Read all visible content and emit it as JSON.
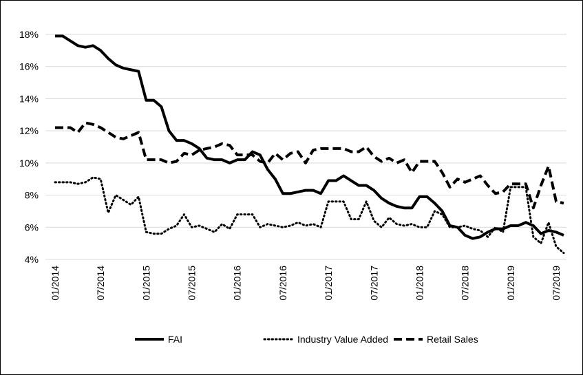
{
  "chart_data": {
    "type": "line",
    "categories": [
      "01/2014",
      null,
      null,
      null,
      null,
      null,
      "07/2014",
      null,
      null,
      null,
      null,
      null,
      "01/2015",
      null,
      null,
      null,
      null,
      null,
      "07/2015",
      null,
      null,
      null,
      null,
      null,
      "01/2016",
      null,
      null,
      null,
      null,
      null,
      "07/2016",
      null,
      null,
      null,
      null,
      null,
      "01/2017",
      null,
      null,
      null,
      null,
      null,
      "07/2017",
      null,
      null,
      null,
      null,
      null,
      "01/2018",
      null,
      null,
      null,
      null,
      null,
      "07/2018",
      null,
      null,
      null,
      null,
      null,
      "01/2019",
      null,
      null,
      null,
      null,
      null,
      "07/2019",
      null
    ],
    "series": [
      {
        "name": "FAI",
        "color": "#000000",
        "style": "solid",
        "values": [
          17.9,
          17.9,
          17.6,
          17.3,
          17.2,
          17.3,
          17.0,
          16.5,
          16.1,
          15.9,
          15.8,
          15.7,
          13.9,
          13.9,
          13.5,
          12.0,
          11.4,
          11.4,
          11.2,
          10.9,
          10.3,
          10.2,
          10.2,
          10.0,
          10.2,
          10.2,
          10.7,
          10.5,
          9.6,
          9.0,
          8.1,
          8.1,
          8.2,
          8.3,
          8.3,
          8.1,
          8.9,
          8.9,
          9.2,
          8.9,
          8.6,
          8.6,
          8.3,
          7.8,
          7.5,
          7.3,
          7.2,
          7.2,
          7.9,
          7.9,
          7.5,
          7.0,
          6.1,
          6.0,
          5.5,
          5.3,
          5.4,
          5.7,
          5.9,
          5.9,
          6.1,
          6.1,
          6.3,
          6.1,
          5.6,
          5.8,
          5.7,
          5.5
        ]
      },
      {
        "name": "Industry Value Added",
        "color": "#000000",
        "style": "dotted",
        "values": [
          8.8,
          8.8,
          8.8,
          8.7,
          8.8,
          9.1,
          9.0,
          6.9,
          8.0,
          7.7,
          7.4,
          7.9,
          5.7,
          5.6,
          5.6,
          5.9,
          6.1,
          6.8,
          6.0,
          6.1,
          5.9,
          5.7,
          6.2,
          5.9,
          6.8,
          6.8,
          6.8,
          6.0,
          6.2,
          6.1,
          6.0,
          6.1,
          6.3,
          6.1,
          6.2,
          6.0,
          7.6,
          7.6,
          7.6,
          6.5,
          6.5,
          7.6,
          6.4,
          6.0,
          6.6,
          6.2,
          6.1,
          6.2,
          6.0,
          6.0,
          7.0,
          6.8,
          6.0,
          6.0,
          6.1,
          5.9,
          5.8,
          5.4,
          6.0,
          5.7,
          8.5,
          8.5,
          8.5,
          5.4,
          5.0,
          6.3,
          4.8,
          4.4
        ]
      },
      {
        "name": "Retail Sales",
        "color": "#000000",
        "style": "dashed",
        "values": [
          12.2,
          12.2,
          12.2,
          11.9,
          12.5,
          12.4,
          12.2,
          11.9,
          11.6,
          11.5,
          11.7,
          11.9,
          10.2,
          10.2,
          10.2,
          10.0,
          10.1,
          10.6,
          10.5,
          10.8,
          10.9,
          11.0,
          11.2,
          11.1,
          10.5,
          10.5,
          10.5,
          10.1,
          10.0,
          10.6,
          10.2,
          10.6,
          10.7,
          10.0,
          10.8,
          10.9,
          10.9,
          10.9,
          10.9,
          10.7,
          10.7,
          11.0,
          10.4,
          10.1,
          10.3,
          10.0,
          10.2,
          9.4,
          10.1,
          10.1,
          10.1,
          9.4,
          8.5,
          9.0,
          8.8,
          9.0,
          9.2,
          8.6,
          8.1,
          8.2,
          8.7,
          8.7,
          8.7,
          7.2,
          8.6,
          9.8,
          7.6,
          7.5
        ]
      }
    ],
    "ylim": [
      4,
      18
    ],
    "yticks": [
      {
        "value": 4,
        "label": "4%"
      },
      {
        "value": 6,
        "label": "6%"
      },
      {
        "value": 8,
        "label": "8%"
      },
      {
        "value": 10,
        "label": "10%"
      },
      {
        "value": 12,
        "label": "12%"
      },
      {
        "value": 14,
        "label": "14%"
      },
      {
        "value": 16,
        "label": "16%"
      },
      {
        "value": 18,
        "label": "18%"
      }
    ],
    "grid": true,
    "legend": "bottom"
  }
}
